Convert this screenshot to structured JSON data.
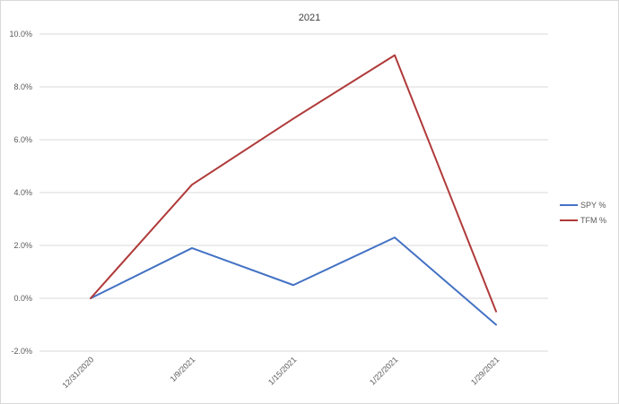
{
  "chart_data": {
    "type": "line",
    "title": "2021",
    "xlabel": "",
    "ylabel": "",
    "x": [
      "12/31/2020",
      "1/9/2021",
      "1/15/2021",
      "1/22/2021",
      "1/29/2021"
    ],
    "y_tick_labels": [
      "-2.0%",
      "0.0%",
      "2.0%",
      "4.0%",
      "6.0%",
      "8.0%",
      "10.0%"
    ],
    "ylim": [
      -2.0,
      10.0
    ],
    "y_unit": "%",
    "grid": true,
    "legend_position": "right",
    "series": [
      {
        "name": "SPY %",
        "color": "#4472c4",
        "values": [
          0.0,
          1.9,
          0.5,
          2.3,
          -1.0
        ]
      },
      {
        "name": "TFM %",
        "color": "#b03a3a",
        "values": [
          0.0,
          4.3,
          6.8,
          9.2,
          -0.5
        ]
      }
    ]
  }
}
